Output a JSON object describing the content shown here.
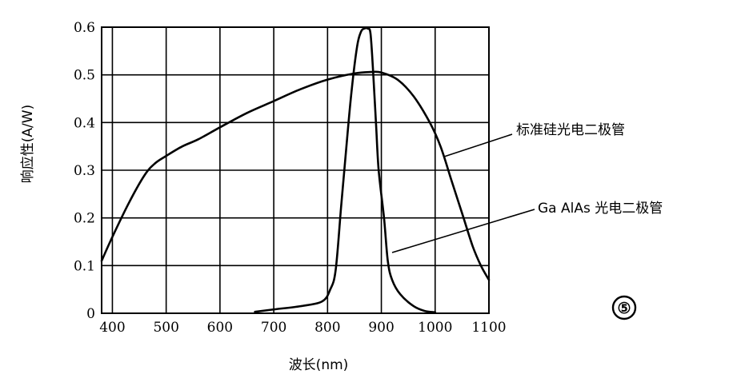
{
  "chart_data": {
    "type": "line",
    "xlabel": "波长(nm)",
    "ylabel": "响应性(A/W)",
    "xlim": [
      380,
      1100
    ],
    "ylim": [
      0,
      0.6
    ],
    "x_ticks": [
      400,
      500,
      600,
      700,
      800,
      900,
      1000,
      1100
    ],
    "y_ticks": [
      0,
      0.1,
      0.2,
      0.3,
      0.4,
      0.5,
      0.6
    ],
    "y_tick_labels": [
      "0",
      "0.1",
      "0.2",
      "0.3",
      "0.4",
      "0.5",
      "0.6"
    ],
    "grid": true,
    "series": [
      {
        "name": "标准硅光电二极管",
        "x": [
          380,
          400,
          430,
          460,
          480,
          500,
          530,
          560,
          600,
          650,
          700,
          750,
          800,
          850,
          880,
          900,
          930,
          960,
          990,
          1010,
          1030,
          1050,
          1070,
          1085,
          1100
        ],
        "y": [
          0.11,
          0.16,
          0.23,
          0.29,
          0.315,
          0.33,
          0.35,
          0.365,
          0.39,
          0.42,
          0.445,
          0.47,
          0.49,
          0.503,
          0.506,
          0.505,
          0.49,
          0.455,
          0.4,
          0.35,
          0.28,
          0.21,
          0.14,
          0.1,
          0.07
        ]
      },
      {
        "name": "Ga AlAs 光电二极管",
        "x": [
          665,
          700,
          750,
          790,
          805,
          815,
          825,
          835,
          845,
          855,
          862,
          868,
          875,
          880,
          885,
          890,
          895,
          905,
          912,
          920,
          935,
          960,
          980,
          1000
        ],
        "y": [
          0.003,
          0.008,
          0.015,
          0.025,
          0.05,
          0.09,
          0.22,
          0.35,
          0.47,
          0.56,
          0.59,
          0.597,
          0.597,
          0.585,
          0.5,
          0.4,
          0.3,
          0.2,
          0.11,
          0.07,
          0.04,
          0.015,
          0.005,
          0.002
        ]
      }
    ]
  },
  "annotations": {
    "label_si": "标准硅光电二极管",
    "label_gaalas": "Ga AlAs 光电二极管",
    "figure_mark": "⑤"
  }
}
